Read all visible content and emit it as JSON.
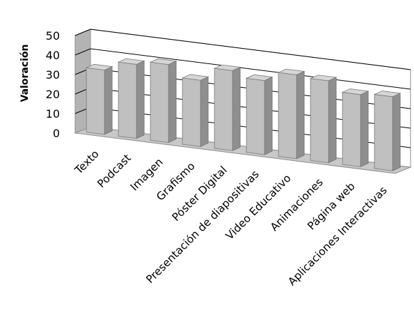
{
  "chart_data": {
    "type": "bar",
    "title": "",
    "xlabel": "",
    "ylabel": "Valoración",
    "ylim": [
      0,
      50
    ],
    "yticks": [
      "0",
      "10",
      "20",
      "30",
      "40",
      "50"
    ],
    "grid": true,
    "legend": "none",
    "bar_color": "#c0c0c0",
    "floor_color": "#c9c9c9",
    "wall_color": "#b3b3b3",
    "categories": [
      "Texto",
      "Podcast",
      "Imagen",
      "Grafismo",
      "Póster Digital",
      "Presentación de diapositivas",
      "Video Educativo",
      "Animaciones",
      "Página web",
      "Aplicaciones Interactivas"
    ],
    "values": [
      33,
      38,
      40,
      34,
      41,
      38,
      43,
      42,
      37,
      38
    ]
  }
}
